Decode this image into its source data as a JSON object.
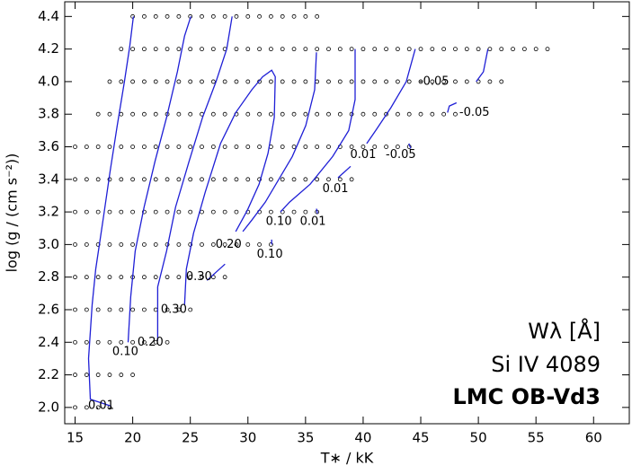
{
  "chart_data": {
    "type": "contour",
    "x_label": "T∗ / kK",
    "y_label": "log (g / (cm s⁻²))",
    "annotations": [
      "Wλ  [Å]",
      "Si IV 4089",
      "LMC OB-Vd3"
    ],
    "xlim": [
      14.1,
      63.1
    ],
    "ylim": [
      1.9,
      4.49
    ],
    "xticks": [
      15,
      20,
      25,
      30,
      35,
      40,
      45,
      50,
      55,
      60
    ],
    "yticks": [
      {
        "value": 2,
        "label": "2.0"
      },
      2.2,
      2.4,
      2.6,
      2.8,
      {
        "value": 3,
        "label": "3.0"
      },
      3.2,
      3.4,
      3.6,
      3.8,
      {
        "value": 4,
        "label": "4.0"
      },
      4.2,
      4.4
    ],
    "color": "#1f1fd6",
    "grid_step": 1,
    "grid_points": [
      {
        "logg": 4.4,
        "teff_min": 20,
        "teff_max": 36
      },
      {
        "logg": 4.2,
        "teff_min": 19,
        "teff_max": 56
      },
      {
        "logg": 4.0,
        "teff_min": 18,
        "teff_max": 52
      },
      {
        "logg": 3.8,
        "teff_min": 17,
        "teff_max": 48
      },
      {
        "logg": 3.6,
        "teff_min": 15,
        "teff_max": 44
      },
      {
        "logg": 3.4,
        "teff_min": 15,
        "teff_max": 39
      },
      {
        "logg": 3.2,
        "teff_min": 15,
        "teff_max": 36
      },
      {
        "logg": 3.0,
        "teff_min": 15,
        "teff_max": 32
      },
      {
        "logg": 2.8,
        "teff_min": 15,
        "teff_max": 28
      },
      {
        "logg": 2.6,
        "teff_min": 15,
        "teff_max": 25
      },
      {
        "logg": 2.4,
        "teff_min": 15,
        "teff_max": 23
      },
      {
        "logg": 2.2,
        "teff_min": 15,
        "teff_max": 20
      },
      {
        "logg": 2.0,
        "teff_min": 15,
        "teff_max": 18
      }
    ],
    "contours": [
      {
        "x": [
          18.04,
          16.32,
          16.17,
          16.48,
          16.79,
          17.49,
          18.04,
          18.66,
          19.28,
          19.75,
          20.06
        ],
        "y": [
          2.01,
          2.05,
          2.3,
          2.63,
          2.85,
          3.18,
          3.45,
          3.73,
          4.0,
          4.22,
          4.4
        ]
      },
      {
        "x": [
          19.6,
          19.83,
          20.22,
          20.99,
          21.93,
          22.94,
          23.88,
          24.5,
          25.05
        ],
        "y": [
          2.4,
          2.68,
          2.96,
          3.23,
          3.51,
          3.78,
          4.06,
          4.28,
          4.4
        ]
      },
      {
        "x": [
          22.17,
          22.17,
          22.94,
          23.72,
          24.89,
          26.06,
          27.23,
          28.16,
          28.63
        ],
        "y": [
          2.41,
          2.74,
          2.96,
          3.23,
          3.51,
          3.78,
          4.0,
          4.2,
          4.4
        ]
      },
      {
        "x": [
          24.5,
          24.66,
          25.28,
          26.29,
          27.62,
          28.94,
          30.34,
          31.28,
          32.06,
          32.37,
          32.29,
          31.74,
          30.97,
          29.95,
          28.94
        ],
        "y": [
          2.63,
          2.85,
          3.07,
          3.32,
          3.62,
          3.81,
          3.95,
          4.03,
          4.07,
          4.03,
          3.78,
          3.56,
          3.37,
          3.21,
          3.08
        ]
      },
      {
        "x": [
          26.45,
          28.01
        ],
        "y": [
          2.78,
          2.88
        ]
      },
      {
        "x": [
          35.95,
          35.79,
          35.02,
          33.85,
          32.68,
          31.51,
          30.34,
          29.56
        ],
        "y": [
          4.18,
          3.95,
          3.73,
          3.54,
          3.4,
          3.26,
          3.15,
          3.08
        ]
      },
      {
        "x": [
          39.3,
          39.3,
          38.75,
          37.35,
          35.4,
          33.61,
          32.83
        ],
        "y": [
          4.2,
          3.89,
          3.7,
          3.54,
          3.37,
          3.26,
          3.2
        ]
      },
      {
        "x": [
          44.52,
          43.74,
          42.41,
          41.09,
          40.31
        ],
        "y": [
          4.2,
          4.0,
          3.84,
          3.7,
          3.62
        ]
      },
      {
        "x": [
          37.82,
          38.91
        ],
        "y": [
          3.41,
          3.48
        ]
      },
      {
        "x": [
          35.95,
          36.03
        ],
        "y": [
          3.22,
          3.19
        ]
      },
      {
        "x": [
          32.06,
          32.06
        ],
        "y": [
          3.03,
          3.0
        ]
      },
      {
        "x": [
          50.83,
          50.44,
          49.81
        ],
        "y": [
          4.2,
          4.06,
          4.0
        ]
      },
      {
        "x": [
          47.32,
          47.48,
          48.1
        ],
        "y": [
          3.81,
          3.85,
          3.87
        ]
      },
      {
        "x": [
          43.97,
          44.13
        ],
        "y": [
          3.62,
          3.59
        ]
      }
    ],
    "contour_labels": [
      {
        "text": "0.01",
        "x": 17.26,
        "y": 2.01
      },
      {
        "text": "0.10",
        "x": 19.36,
        "y": 2.34
      },
      {
        "text": "0.20",
        "x": 21.54,
        "y": 2.4
      },
      {
        "text": "0.30",
        "x": 23.57,
        "y": 2.6
      },
      {
        "text": "0.30",
        "x": 25.75,
        "y": 2.8
      },
      {
        "text": "0.20",
        "x": 28.32,
        "y": 3.0
      },
      {
        "text": "0.10",
        "x": 31.9,
        "y": 2.94
      },
      {
        "text": "0.10",
        "x": 32.68,
        "y": 3.14
      },
      {
        "text": "0.01",
        "x": 35.64,
        "y": 3.14
      },
      {
        "text": "0.01",
        "x": 37.59,
        "y": 3.34
      },
      {
        "text": "0.01",
        "x": 40.0,
        "y": 3.55
      },
      {
        "text": "-0.05",
        "x": 43.27,
        "y": 3.55
      },
      {
        "text": "-0.05",
        "x": 46.15,
        "y": 4.0
      },
      {
        "text": "-0.05",
        "x": 49.66,
        "y": 3.81
      }
    ]
  }
}
